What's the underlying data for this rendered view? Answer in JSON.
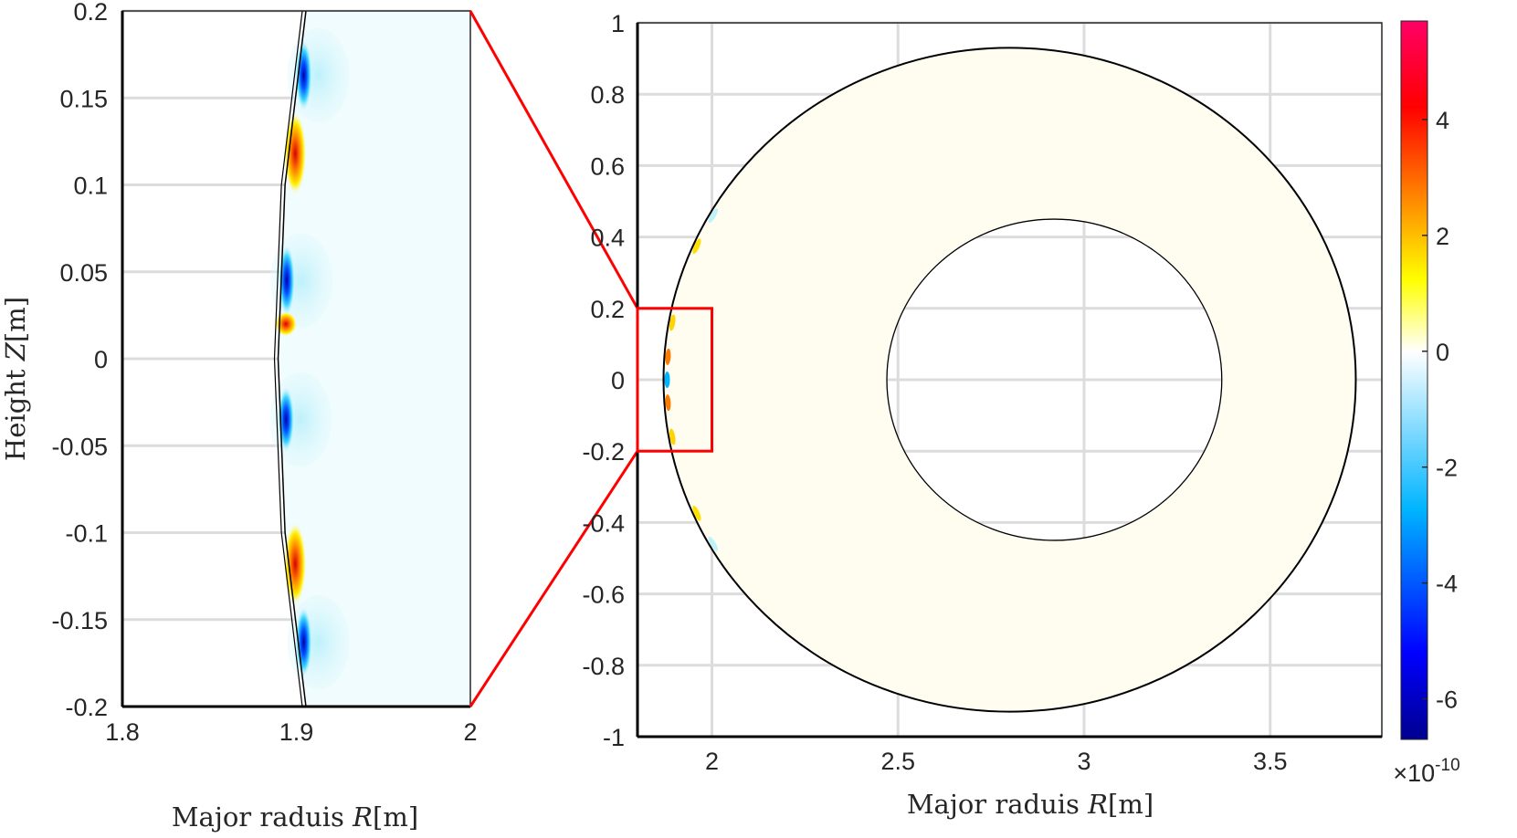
{
  "chart_data": [
    {
      "type": "heatmap",
      "panel": "zoom",
      "xlabel": {
        "text": "Major raduis ",
        "var": "R",
        "unit": "[m]"
      },
      "ylabel": {
        "text": "Height ",
        "var": "Z",
        "unit": "[m]"
      },
      "xlim": [
        1.8,
        2.0
      ],
      "ylim": [
        -0.2,
        0.2
      ],
      "xticks": [
        "1.8",
        "1.9",
        "2"
      ],
      "yticks": [
        "0.2",
        "0.15",
        "0.1",
        "0.05",
        "0",
        "-0.05",
        "-0.1",
        "-0.15",
        "-0.2"
      ],
      "ytick_values": [
        0.2,
        0.15,
        0.1,
        0.05,
        0,
        -0.05,
        -0.1,
        -0.15,
        -0.2
      ],
      "xtick_values": [
        1.8,
        1.9,
        2.0
      ],
      "grid": true,
      "boundary_R_at_Z": [
        [
          0.2,
          1.9055
        ],
        [
          0.1,
          1.8935
        ],
        [
          0.0,
          1.8895
        ],
        [
          -0.1,
          1.8935
        ],
        [
          -0.2,
          1.9055
        ]
      ],
      "features": [
        {
          "z": 0.163,
          "sign": "negative",
          "peak": -6.5
        },
        {
          "z": 0.118,
          "sign": "positive",
          "peak": 5.0
        },
        {
          "z": 0.045,
          "sign": "negative",
          "peak": -6.5
        },
        {
          "z": 0.02,
          "sign": "positive",
          "peak": 1.5
        },
        {
          "z": -0.035,
          "sign": "negative",
          "peak": -6.0
        },
        {
          "z": -0.118,
          "sign": "positive",
          "peak": 5.0
        },
        {
          "z": -0.163,
          "sign": "negative",
          "peak": -6.5
        }
      ]
    },
    {
      "type": "heatmap",
      "panel": "full",
      "xlabel": {
        "text": "Major raduis ",
        "var": "R",
        "unit": "[m]"
      },
      "xlim": [
        1.8,
        3.8
      ],
      "ylim": [
        -1,
        1
      ],
      "xticks": [
        "2",
        "2.5",
        "3",
        "3.5"
      ],
      "xtick_values": [
        2,
        2.5,
        3,
        3.5
      ],
      "yticks": [
        "1",
        "0.8",
        "0.6",
        "0.4",
        "0.2",
        "0",
        "-0.2",
        "-0.4",
        "-0.6",
        "-0.8",
        "-1"
      ],
      "ytick_values": [
        1,
        0.8,
        0.6,
        0.4,
        0.2,
        0,
        -0.2,
        -0.4,
        -0.6,
        -0.8,
        -1
      ],
      "grid": true,
      "outer_boundary": {
        "R0": 2.8,
        "a": 0.93
      },
      "inner_boundary": {
        "R0": 2.92,
        "a": 0.45
      },
      "zoom_box": {
        "R": [
          1.8,
          2.0
        ],
        "Z": [
          -0.2,
          0.2
        ],
        "color": "#ff0000"
      }
    }
  ],
  "colorbar": {
    "range": [
      -6.7,
      5.7
    ],
    "ticks": [
      "4",
      "2",
      "0",
      "-2",
      "-4",
      "-6"
    ],
    "tick_values": [
      4,
      2,
      0,
      -2,
      -4,
      -6
    ],
    "exponent_base": "×10",
    "exponent": "-10",
    "colors": [
      "#00008f",
      "#0000ff",
      "#00b4ff",
      "#ffffff",
      "#ffff00",
      "#ff8000",
      "#ff0000",
      "#ff0066"
    ]
  }
}
